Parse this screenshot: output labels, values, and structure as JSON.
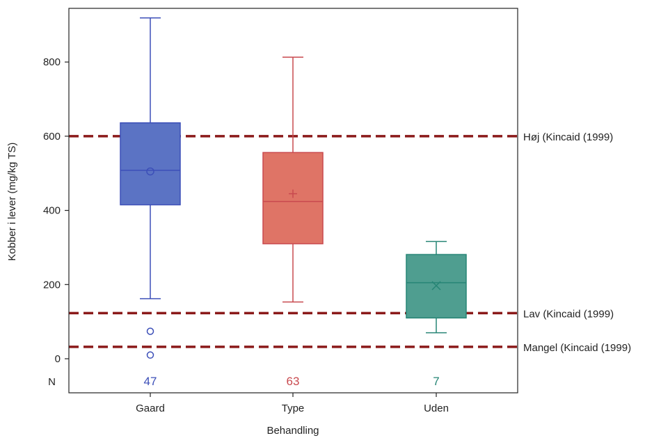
{
  "chart_data": {
    "type": "box",
    "xlabel": "Behandling",
    "ylabel": "Kobber i lever (mg/kg TS)",
    "ylim": [
      -30,
      950
    ],
    "yticks": [
      0,
      200,
      400,
      600,
      800
    ],
    "categories": [
      "Gaard",
      "Type",
      "Uden"
    ],
    "boxes": [
      {
        "category": "Gaard",
        "min": 162,
        "q1": 415,
        "median": 508,
        "q3": 636,
        "max": 919,
        "mean": 505,
        "mean_marker": "circle",
        "outliers": [
          74,
          10
        ],
        "n": 47,
        "color": "#5b73c4",
        "stroke": "#3c4fb8"
      },
      {
        "category": "Type",
        "min": 153,
        "q1": 310,
        "median": 424,
        "q3": 556,
        "max": 813,
        "mean": 445,
        "mean_marker": "plus",
        "outliers": [],
        "n": 63,
        "color": "#df7466",
        "stroke": "#c94a4f"
      },
      {
        "category": "Uden",
        "min": 70,
        "q1": 110,
        "median": 205,
        "q3": 281,
        "max": 316,
        "mean": 197,
        "mean_marker": "x",
        "outliers": [],
        "n": 7,
        "color": "#4f9e90",
        "stroke": "#268575"
      }
    ],
    "reference_lines": [
      {
        "value": 600,
        "label": "Høj (Kincaid (1999)"
      },
      {
        "value": 123,
        "label": "Lav (Kincaid (1999)"
      },
      {
        "value": 32,
        "label": "Mangel (Kincaid (1999)"
      }
    ],
    "n_label": "N",
    "reference_line_color": "#8b1a1a",
    "grid": false,
    "legend": "none"
  }
}
